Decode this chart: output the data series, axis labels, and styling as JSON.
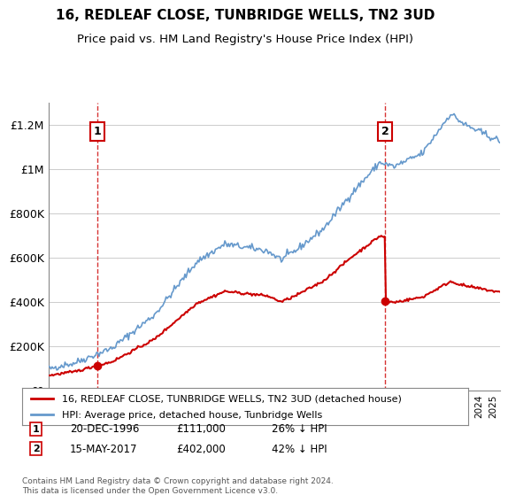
{
  "title": "16, REDLEAF CLOSE, TUNBRIDGE WELLS, TN2 3UD",
  "subtitle": "Price paid vs. HM Land Registry's House Price Index (HPI)",
  "legend_label_red": "16, REDLEAF CLOSE, TUNBRIDGE WELLS, TN2 3UD (detached house)",
  "legend_label_blue": "HPI: Average price, detached house, Tunbridge Wells",
  "footnote": "Contains HM Land Registry data © Crown copyright and database right 2024.\nThis data is licensed under the Open Government Licence v3.0.",
  "transaction1_label": "1",
  "transaction1_date": "20-DEC-1996",
  "transaction1_price": "£111,000",
  "transaction1_hpi": "26% ↓ HPI",
  "transaction2_label": "2",
  "transaction2_date": "15-MAY-2017",
  "transaction2_price": "£402,000",
  "transaction2_hpi": "42% ↓ HPI",
  "red_color": "#cc0000",
  "blue_color": "#6699cc",
  "hatch_color": "#cccccc",
  "dashed_line_color": "#cc0000",
  "background_color": "#ffffff",
  "ylim": [
    0,
    1300000
  ],
  "yticks": [
    0,
    200000,
    400000,
    600000,
    800000,
    1000000,
    1200000
  ],
  "xlim_start": 1993.5,
  "xlim_end": 2025.5,
  "transaction1_x": 1996.96,
  "transaction1_y": 111000,
  "transaction2_x": 2017.37,
  "transaction2_y": 402000
}
